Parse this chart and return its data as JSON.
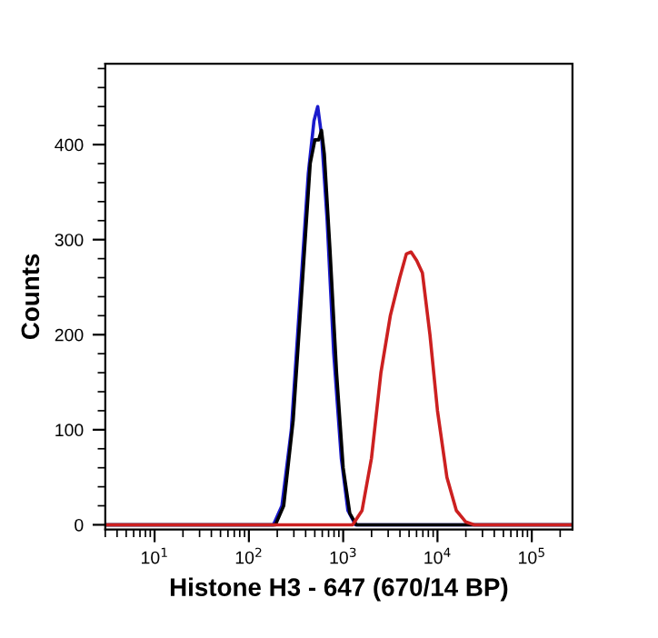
{
  "chart_data": {
    "type": "line",
    "xlabel": "Histone H3 - 647 (670/14 BP)",
    "ylabel": "Counts",
    "log": "x",
    "grid": false,
    "marker": "none",
    "line_style": "solid",
    "xlim": [
      3,
      270000
    ],
    "ylim": [
      -5,
      485
    ],
    "xticks": [
      {
        "value": 10,
        "label": "10$^{1}$"
      },
      {
        "value": 100,
        "label": "10$^{2}$"
      },
      {
        "value": 1000,
        "label": "10$^{3}$"
      },
      {
        "value": 10000,
        "label": "10$^{4}$"
      },
      {
        "value": 100000,
        "label": "10$^{5}$"
      }
    ],
    "yticks": [
      0,
      100,
      200,
      300,
      400
    ],
    "series": [
      {
        "color": "#1a1acc",
        "x": [
          3,
          182,
          224,
          282,
          355,
          427,
          490,
          537,
          589,
          676,
          794,
          955,
          1122,
          1349,
          270000
        ],
        "values": [
          0,
          0,
          20,
          100,
          250,
          370,
          425,
          440,
          410,
          320,
          180,
          70,
          15,
          0,
          0
        ]
      },
      {
        "color": "#000000",
        "x": [
          3,
          191,
          234,
          295,
          372,
          447,
          501,
          550,
          589,
          631,
          724,
          851,
          1000,
          1175,
          1380,
          270000
        ],
        "values": [
          0,
          0,
          20,
          110,
          260,
          380,
          405,
          405,
          415,
          390,
          290,
          160,
          60,
          12,
          0,
          0
        ]
      },
      {
        "color": "#cc2020",
        "x": [
          3,
          1259,
          1585,
          1995,
          2512,
          3162,
          3981,
          4677,
          5248,
          6026,
          6918,
          8318,
          10000,
          12589,
          15849,
          19953,
          24547,
          270000
        ],
        "values": [
          0,
          0,
          15,
          70,
          160,
          220,
          260,
          285,
          287,
          278,
          265,
          200,
          120,
          50,
          15,
          3,
          0,
          0
        ]
      }
    ]
  }
}
